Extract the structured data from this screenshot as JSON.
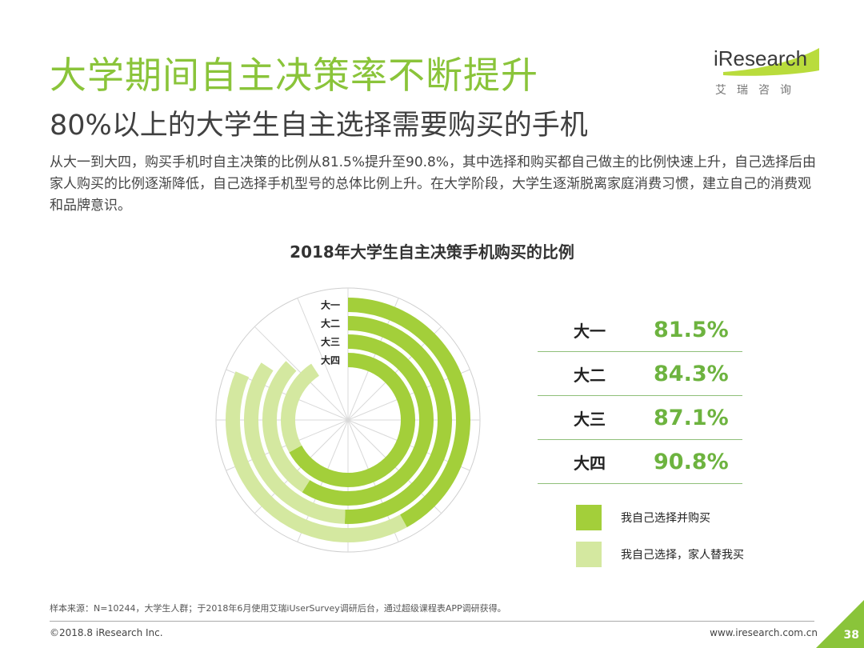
{
  "header": {
    "title": "大学期间自主决策率不断提升",
    "subtitle": "80%以上的大学生自主选择需要购买的手机",
    "description": "从大一到大四，购买手机时自主决策的比例从81.5%提升至90.8%，其中选择和购买都自己做主的比例快速上升，自己选择后由家人购买的比例逐渐降低，自己选择手机型号的总体比例上升。在大学阶段，大学生逐渐脱离家庭消费习惯，建立自己的消费观和品牌意识。"
  },
  "logo": {
    "brand": "iResearch",
    "sub": "艾瑞咨询"
  },
  "chart_data": {
    "type": "radial-bar",
    "title": "2018年大学生自主决策手机购买的比例",
    "categories": [
      "大一",
      "大二",
      "大三",
      "大四"
    ],
    "totals": [
      81.5,
      84.3,
      87.1,
      90.8
    ],
    "series": [
      {
        "name": "我自己选择并购买",
        "values": [
          42.0,
          50.5,
          59.0,
          67.0
        ]
      },
      {
        "name": "我自己选择，家人替我买",
        "values": [
          39.5,
          33.8,
          28.1,
          23.8
        ]
      }
    ],
    "colors": [
      "#a3cf3a",
      "#d4e8a0"
    ]
  },
  "table": {
    "rows": [
      {
        "grade": "大一",
        "pct": "81.5%"
      },
      {
        "grade": "大二",
        "pct": "84.3%"
      },
      {
        "grade": "大三",
        "pct": "87.1%"
      },
      {
        "grade": "大四",
        "pct": "90.8%"
      }
    ]
  },
  "legend": {
    "items": [
      {
        "label": "我自己选择并购买",
        "color": "#a3cf3a"
      },
      {
        "label": "我自己选择，家人替我买",
        "color": "#d4e8a0"
      }
    ]
  },
  "footer": {
    "source": "样本来源：N=10244，大学生人群；于2018年6月使用艾瑞iUserSurvey调研后台，通过超级课程表APP调研获得。",
    "copyright": "©2018.8 iResearch Inc.",
    "website": "www.iresearch.com.cn",
    "page": "38",
    "corner_color": "#8ac43a"
  }
}
